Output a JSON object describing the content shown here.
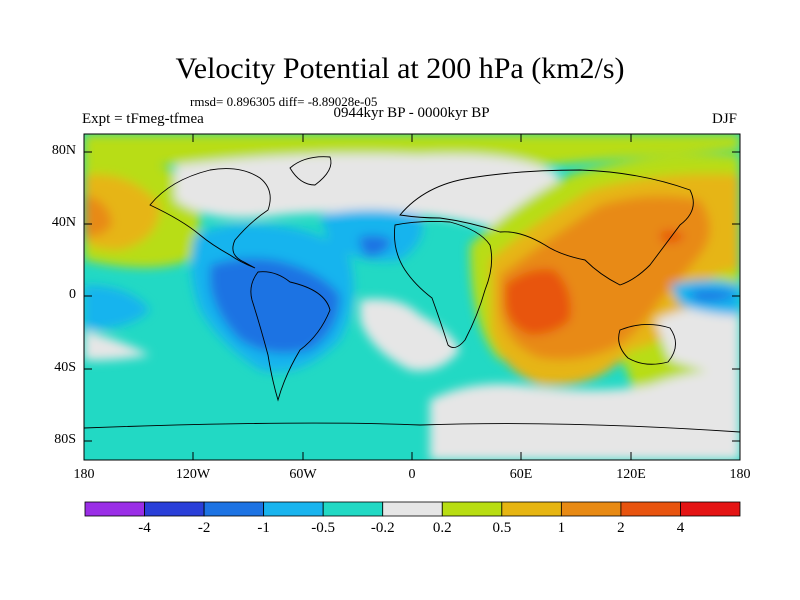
{
  "figure": {
    "title": "Velocity Potential at 200 hPa (km2/s)",
    "stats": "rmsd= 0.896305 diff= -8.89028e-05",
    "left_subtitle": "Expt = tFmeg-tfmea",
    "center_subtitle": "0944kyr BP - 0000kyr BP",
    "right_subtitle": "DJF"
  },
  "map": {
    "projection": "cylindrical equidistant",
    "lon_range": [
      -180,
      180
    ],
    "lat_range": [
      -90,
      90
    ],
    "lat_ticks": [
      "80N",
      "40N",
      "0",
      "40S",
      "80S"
    ],
    "lon_ticks": [
      "180",
      "120W",
      "60W",
      "0",
      "60E",
      "120E",
      "180"
    ],
    "fill": "filled contours of velocity potential difference",
    "coastlines": true
  },
  "colorbar": {
    "labels": [
      "-4",
      "-2",
      "-1",
      "-0.5",
      "-0.2",
      "0.2",
      "0.5",
      "1",
      "2",
      "4"
    ],
    "colors": [
      "#9a2ee6",
      "#2a3fd8",
      "#1d73e3",
      "#19b4ee",
      "#22d9c4",
      "#e6e6e6",
      "#b8dd12",
      "#e6b512",
      "#e88a14",
      "#e8540f",
      "#e41414"
    ]
  }
}
